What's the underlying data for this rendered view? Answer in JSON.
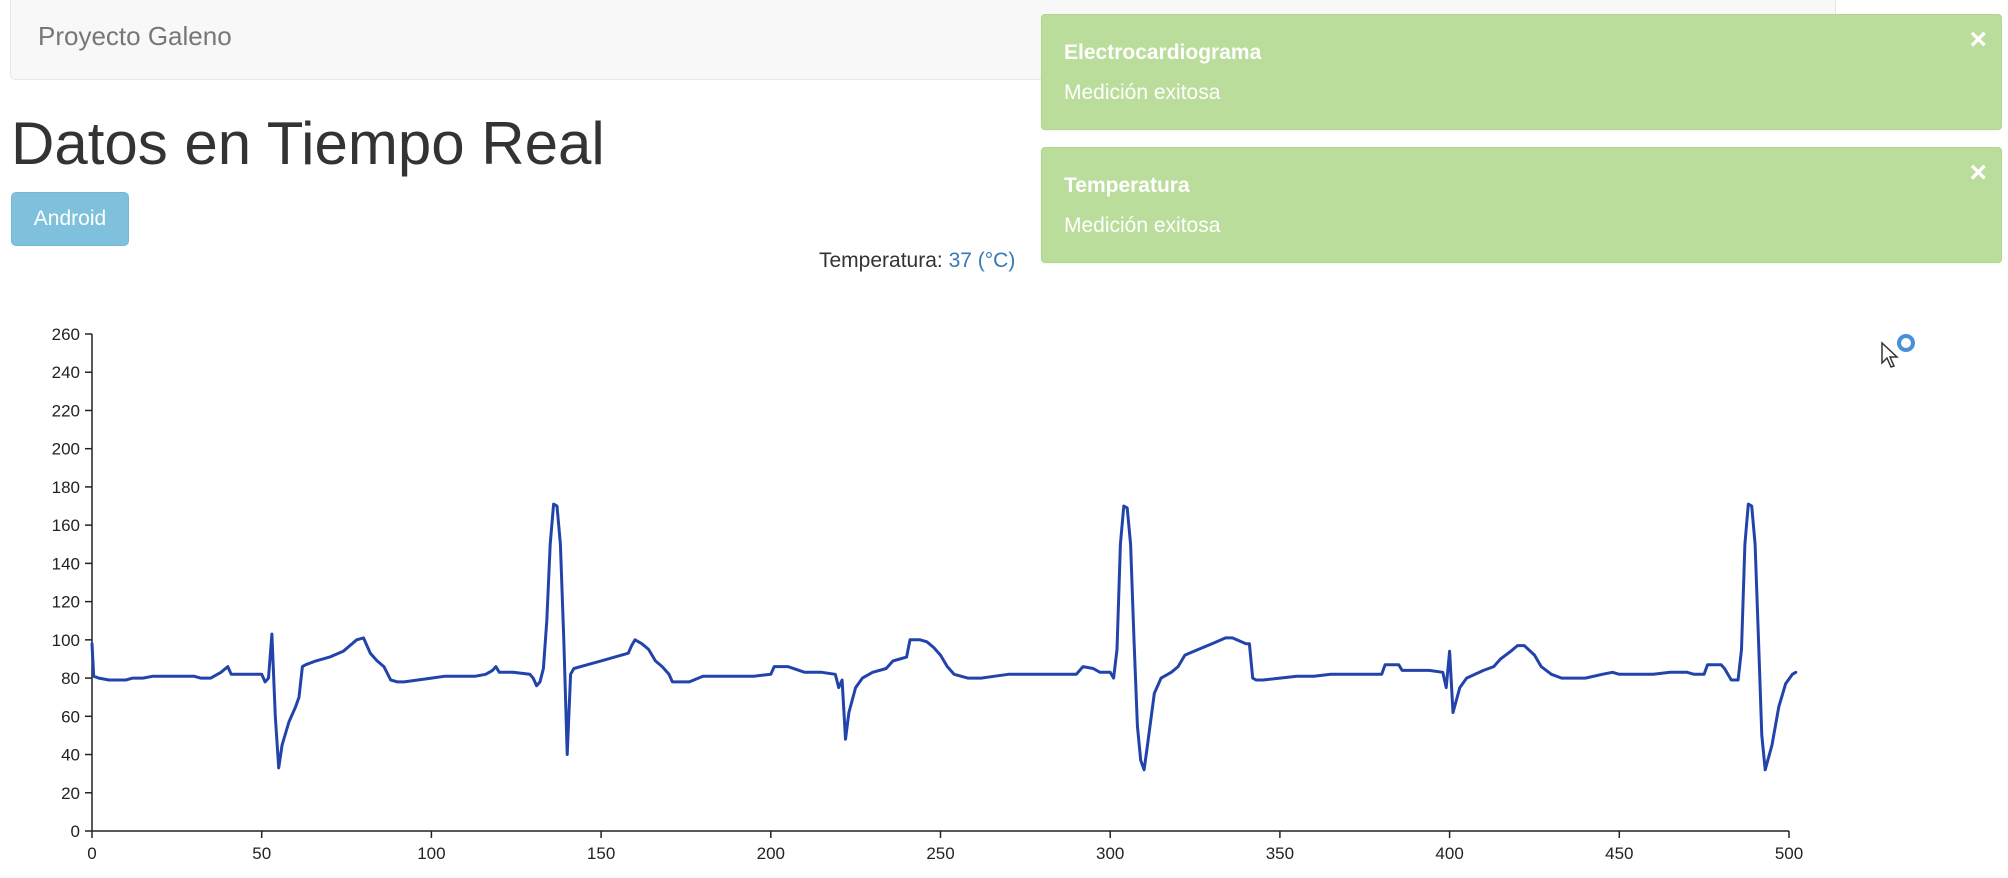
{
  "navbar": {
    "brand": "Proyecto Galeno"
  },
  "header": {
    "title": "Datos en Tiempo Real"
  },
  "buttons": {
    "android_label": "Android"
  },
  "temperature": {
    "label": "Temperatura:",
    "value": "37 (°C)"
  },
  "notifications": [
    {
      "title": "Electrocardiograma",
      "message": "Medición exitosa",
      "close_icon": "×"
    },
    {
      "title": "Temperatura",
      "message": "Medición exitosa",
      "close_icon": "×"
    }
  ],
  "colors": {
    "toast_bg": "#bbdd9b",
    "button_bg": "#7fc0dd",
    "line": "#2244aa",
    "link": "#337ab7"
  },
  "icons": {
    "cursor": "busy-cursor-icon",
    "close": "close-icon"
  },
  "chart_data": {
    "type": "line",
    "title": "",
    "xlabel": "",
    "ylabel": "",
    "xlim": [
      0,
      500
    ],
    "ylim": [
      0,
      260
    ],
    "x_ticks": [
      0,
      50,
      100,
      150,
      200,
      250,
      300,
      350,
      400,
      450,
      500
    ],
    "y_ticks": [
      0,
      20,
      40,
      60,
      80,
      100,
      120,
      140,
      160,
      180,
      200,
      220,
      240,
      260
    ],
    "grid": false,
    "series": [
      {
        "color": "#2244aa",
        "points": [
          [
            0,
            98
          ],
          [
            0.5,
            81
          ],
          [
            2,
            80
          ],
          [
            5,
            79
          ],
          [
            10,
            79
          ],
          [
            12,
            80
          ],
          [
            15,
            80
          ],
          [
            18,
            81
          ],
          [
            25,
            81
          ],
          [
            30,
            81
          ],
          [
            32,
            80
          ],
          [
            35,
            80
          ],
          [
            38,
            83
          ],
          [
            40,
            86
          ],
          [
            41,
            82
          ],
          [
            50,
            82
          ],
          [
            51,
            78
          ],
          [
            52,
            80
          ],
          [
            53,
            103
          ],
          [
            54,
            60
          ],
          [
            55,
            33
          ],
          [
            56,
            45
          ],
          [
            58,
            57
          ],
          [
            60,
            65
          ],
          [
            61,
            70
          ],
          [
            62,
            86
          ],
          [
            63,
            87
          ],
          [
            66,
            89
          ],
          [
            70,
            91
          ],
          [
            74,
            94
          ],
          [
            76,
            97
          ],
          [
            78,
            100
          ],
          [
            80,
            101
          ],
          [
            82,
            93
          ],
          [
            84,
            89
          ],
          [
            86,
            86
          ],
          [
            88,
            79
          ],
          [
            90,
            78
          ],
          [
            92,
            78
          ],
          [
            96,
            79
          ],
          [
            100,
            80
          ],
          [
            104,
            81
          ],
          [
            110,
            81
          ],
          [
            113,
            81
          ],
          [
            116,
            82
          ],
          [
            118,
            84
          ],
          [
            119,
            86
          ],
          [
            120,
            83
          ],
          [
            124,
            83
          ],
          [
            129,
            82
          ],
          [
            130,
            80
          ],
          [
            131,
            76
          ],
          [
            132,
            78
          ],
          [
            133,
            85
          ],
          [
            134,
            110
          ],
          [
            135,
            150
          ],
          [
            136,
            171
          ],
          [
            137,
            170
          ],
          [
            138,
            150
          ],
          [
            139,
            100
          ],
          [
            140,
            40
          ],
          [
            141,
            82
          ],
          [
            142,
            85
          ],
          [
            146,
            87
          ],
          [
            150,
            89
          ],
          [
            154,
            91
          ],
          [
            158,
            93
          ],
          [
            159,
            97
          ],
          [
            160,
            100
          ],
          [
            162,
            98
          ],
          [
            164,
            95
          ],
          [
            166,
            89
          ],
          [
            168,
            86
          ],
          [
            170,
            82
          ],
          [
            171,
            78
          ],
          [
            176,
            78
          ],
          [
            180,
            81
          ],
          [
            190,
            81
          ],
          [
            195,
            81
          ],
          [
            200,
            82
          ],
          [
            201,
            86
          ],
          [
            205,
            86
          ],
          [
            210,
            83
          ],
          [
            215,
            83
          ],
          [
            219,
            82
          ],
          [
            220,
            75
          ],
          [
            221,
            79
          ],
          [
            222,
            48
          ],
          [
            223,
            62
          ],
          [
            225,
            75
          ],
          [
            227,
            80
          ],
          [
            230,
            83
          ],
          [
            234,
            85
          ],
          [
            236,
            89
          ],
          [
            238,
            90
          ],
          [
            240,
            91
          ],
          [
            241,
            100
          ],
          [
            244,
            100
          ],
          [
            246,
            99
          ],
          [
            248,
            96
          ],
          [
            250,
            92
          ],
          [
            252,
            86
          ],
          [
            254,
            82
          ],
          [
            258,
            80
          ],
          [
            262,
            80
          ],
          [
            266,
            81
          ],
          [
            270,
            82
          ],
          [
            275,
            82
          ],
          [
            280,
            82
          ],
          [
            285,
            82
          ],
          [
            290,
            82
          ],
          [
            292,
            86
          ],
          [
            295,
            85
          ],
          [
            297,
            83
          ],
          [
            300,
            83
          ],
          [
            301,
            80
          ],
          [
            302,
            95
          ],
          [
            303,
            150
          ],
          [
            304,
            170
          ],
          [
            305,
            169
          ],
          [
            306,
            150
          ],
          [
            307,
            100
          ],
          [
            308,
            55
          ],
          [
            309,
            37
          ],
          [
            310,
            32
          ],
          [
            311,
            45
          ],
          [
            313,
            72
          ],
          [
            315,
            80
          ],
          [
            318,
            83
          ],
          [
            320,
            86
          ],
          [
            322,
            92
          ],
          [
            326,
            95
          ],
          [
            330,
            98
          ],
          [
            334,
            101
          ],
          [
            336,
            101
          ],
          [
            340,
            98
          ],
          [
            341,
            98
          ],
          [
            342,
            80
          ],
          [
            343,
            79
          ],
          [
            345,
            79
          ],
          [
            350,
            80
          ],
          [
            355,
            81
          ],
          [
            360,
            81
          ],
          [
            365,
            82
          ],
          [
            370,
            82
          ],
          [
            378,
            82
          ],
          [
            380,
            82
          ],
          [
            381,
            87
          ],
          [
            385,
            87
          ],
          [
            386,
            84
          ],
          [
            390,
            84
          ],
          [
            394,
            84
          ],
          [
            398,
            83
          ],
          [
            399,
            75
          ],
          [
            400,
            94
          ],
          [
            401,
            62
          ],
          [
            403,
            75
          ],
          [
            405,
            80
          ],
          [
            410,
            84
          ],
          [
            413,
            86
          ],
          [
            415,
            90
          ],
          [
            418,
            94
          ],
          [
            420,
            97
          ],
          [
            422,
            97
          ],
          [
            425,
            92
          ],
          [
            427,
            86
          ],
          [
            430,
            82
          ],
          [
            433,
            80
          ],
          [
            436,
            80
          ],
          [
            440,
            80
          ],
          [
            445,
            82
          ],
          [
            448,
            83
          ],
          [
            450,
            82
          ],
          [
            455,
            82
          ],
          [
            460,
            82
          ],
          [
            465,
            83
          ],
          [
            470,
            83
          ],
          [
            472,
            82
          ],
          [
            475,
            82
          ],
          [
            476,
            87
          ],
          [
            480,
            87
          ],
          [
            481,
            85
          ],
          [
            483,
            79
          ],
          [
            485,
            79
          ],
          [
            486,
            95
          ],
          [
            487,
            150
          ],
          [
            488,
            171
          ],
          [
            489,
            170
          ],
          [
            490,
            150
          ],
          [
            491,
            100
          ],
          [
            492,
            50
          ],
          [
            493,
            32
          ],
          [
            495,
            45
          ],
          [
            497,
            65
          ],
          [
            499,
            77
          ],
          [
            501,
            82
          ],
          [
            502,
            83
          ]
        ]
      }
    ]
  }
}
